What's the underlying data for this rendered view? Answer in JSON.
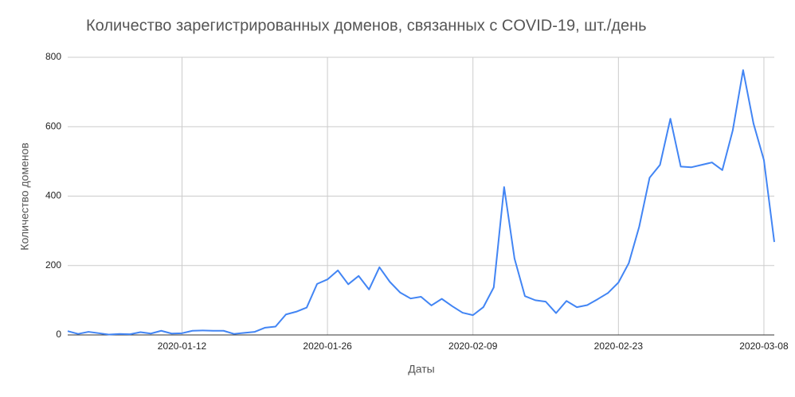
{
  "chart_data": {
    "type": "line",
    "title": "Количество зарегистрированных доменов, связанных с COVID-19, шт./день",
    "x_label": "Даты",
    "y_label": "Количество доменов",
    "x": [
      "2020-01-01",
      "2020-01-02",
      "2020-01-03",
      "2020-01-04",
      "2020-01-05",
      "2020-01-06",
      "2020-01-07",
      "2020-01-08",
      "2020-01-09",
      "2020-01-10",
      "2020-01-11",
      "2020-01-12",
      "2020-01-13",
      "2020-01-14",
      "2020-01-15",
      "2020-01-16",
      "2020-01-17",
      "2020-01-18",
      "2020-01-19",
      "2020-01-20",
      "2020-01-21",
      "2020-01-22",
      "2020-01-23",
      "2020-01-24",
      "2020-01-25",
      "2020-01-26",
      "2020-01-27",
      "2020-01-28",
      "2020-01-29",
      "2020-01-30",
      "2020-01-31",
      "2020-02-01",
      "2020-02-02",
      "2020-02-03",
      "2020-02-04",
      "2020-02-05",
      "2020-02-06",
      "2020-02-07",
      "2020-02-08",
      "2020-02-09",
      "2020-02-10",
      "2020-02-11",
      "2020-02-12",
      "2020-02-13",
      "2020-02-14",
      "2020-02-15",
      "2020-02-16",
      "2020-02-17",
      "2020-02-18",
      "2020-02-19",
      "2020-02-20",
      "2020-02-21",
      "2020-02-22",
      "2020-02-23",
      "2020-02-24",
      "2020-02-25",
      "2020-02-26",
      "2020-02-27",
      "2020-02-28",
      "2020-02-29",
      "2020-03-01",
      "2020-03-02",
      "2020-03-03",
      "2020-03-04",
      "2020-03-05",
      "2020-03-06",
      "2020-03-07",
      "2020-03-08",
      "2020-03-09"
    ],
    "series": [
      {
        "name": "Количество доменов",
        "color": "#4285f4",
        "values": [
          11,
          3,
          9,
          5,
          1,
          3,
          2,
          8,
          4,
          12,
          4,
          5,
          12,
          13,
          12,
          12,
          3,
          6,
          9,
          21,
          24,
          59,
          67,
          79,
          147,
          160,
          186,
          146,
          170,
          131,
          195,
          153,
          122,
          105,
          110,
          85,
          104,
          83,
          64,
          57,
          80,
          137,
          426,
          220,
          112,
          100,
          96,
          63,
          98,
          80,
          86,
          103,
          121,
          151,
          207,
          312,
          453,
          490,
          623,
          485,
          483,
          490,
          497,
          475,
          589,
          763,
          609,
          504,
          268
        ]
      }
    ],
    "xlim": [
      "2020-01-01",
      "2020-03-09"
    ],
    "xticks": [
      "2020-01-12",
      "2020-01-26",
      "2020-02-09",
      "2020-02-23",
      "2020-03-08"
    ],
    "ylim": [
      0,
      800
    ],
    "yticks": [
      0,
      200,
      400,
      600,
      800
    ],
    "grid": true
  }
}
